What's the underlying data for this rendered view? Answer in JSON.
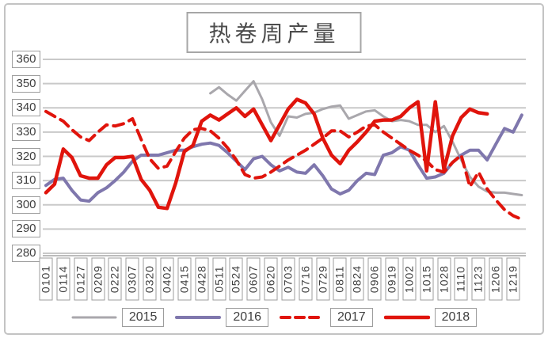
{
  "title": "热卷周产量",
  "chart_data": {
    "type": "line",
    "title": "热卷周产量",
    "ylim": [
      280,
      360
    ],
    "y_ticks": [
      360,
      350,
      340,
      330,
      320,
      310,
      300,
      290,
      280
    ],
    "grid": "horizontal",
    "legend_position": "bottom",
    "x_tick_labels": [
      "0101",
      "0114",
      "0127",
      "0209",
      "0222",
      "0307",
      "0320",
      "0402",
      "0415",
      "0428",
      "0511",
      "0524",
      "0607",
      "0620",
      "0703",
      "0716",
      "0729",
      "0811",
      "0824",
      "0906",
      "0919",
      "1002",
      "1015",
      "1028",
      "1110",
      "1123",
      "1206",
      "1219"
    ],
    "points_per_tick": 2,
    "note": "weekly data points, x tick labels every second point",
    "series": [
      {
        "name": "2015",
        "color": "#a9a7ac",
        "style": "solid",
        "width": 3,
        "values": [
          null,
          null,
          null,
          null,
          null,
          null,
          null,
          null,
          null,
          null,
          null,
          null,
          null,
          null,
          null,
          null,
          null,
          null,
          null,
          346,
          348.5,
          345.5,
          343,
          347,
          351,
          343.5,
          334,
          328.5,
          336.5,
          336,
          337.5,
          338,
          339.5,
          340.5,
          341,
          335.5,
          337,
          338.5,
          339,
          336.5,
          334.5,
          335,
          334.5,
          333,
          333,
          330,
          332.5,
          326,
          318.5,
          311.5,
          307.5,
          305.5,
          305,
          305,
          304.5,
          304
        ]
      },
      {
        "name": "2016",
        "color": "#7f77ad",
        "style": "solid",
        "width": 4,
        "values": [
          308,
          310.5,
          311,
          306,
          302,
          301.5,
          305,
          307,
          310,
          313.5,
          318,
          320.5,
          320.5,
          320.5,
          321.5,
          322.5,
          322.5,
          324,
          325,
          325.5,
          324.5,
          321.5,
          318,
          314.5,
          319,
          320,
          316.5,
          314,
          315.5,
          313.5,
          313,
          316.5,
          312,
          306.5,
          304.5,
          306,
          310,
          313,
          312.5,
          320.5,
          321.5,
          324,
          322.5,
          316.5,
          311,
          311.5,
          313,
          317.5,
          320.5,
          322.5,
          322.5,
          318.5,
          325,
          331.5,
          330,
          337
        ]
      },
      {
        "name": "2017",
        "color": "#e0140c",
        "style": "dashed",
        "width": 4,
        "values": [
          338.5,
          336.5,
          334.5,
          331,
          328,
          326.5,
          330,
          333,
          332.5,
          333.5,
          335.5,
          327,
          319,
          315,
          316,
          322,
          327.5,
          331,
          331.5,
          330.5,
          327.5,
          323.5,
          318.5,
          312.5,
          311,
          311.5,
          313.5,
          316,
          318.5,
          320.5,
          322.5,
          325,
          327.5,
          330.5,
          330.5,
          328,
          330,
          332.5,
          333,
          330,
          327.5,
          325,
          322.5,
          320.5,
          318,
          314.5,
          313.5,
          317.5,
          320.5,
          307.5,
          313.5,
          306.5,
          302,
          298,
          295.5,
          294
        ]
      },
      {
        "name": "2018",
        "color": "#e0140c",
        "style": "solid",
        "width": 4.5,
        "values": [
          305,
          308.5,
          323,
          319.5,
          312,
          311,
          311,
          316.5,
          319.5,
          319.5,
          320,
          310.5,
          306,
          299,
          298.5,
          309,
          322,
          324.5,
          334.5,
          337,
          335,
          337.5,
          340,
          336.5,
          339.5,
          333,
          326.5,
          333,
          339.5,
          343.5,
          342,
          337.5,
          327.5,
          320.5,
          317,
          322.5,
          326,
          330,
          334.5,
          335,
          335,
          336.5,
          340,
          342.5,
          314,
          342.5,
          314.5,
          328.5,
          336,
          339.5,
          338,
          337.5,
          null,
          null,
          null,
          null
        ]
      }
    ]
  }
}
